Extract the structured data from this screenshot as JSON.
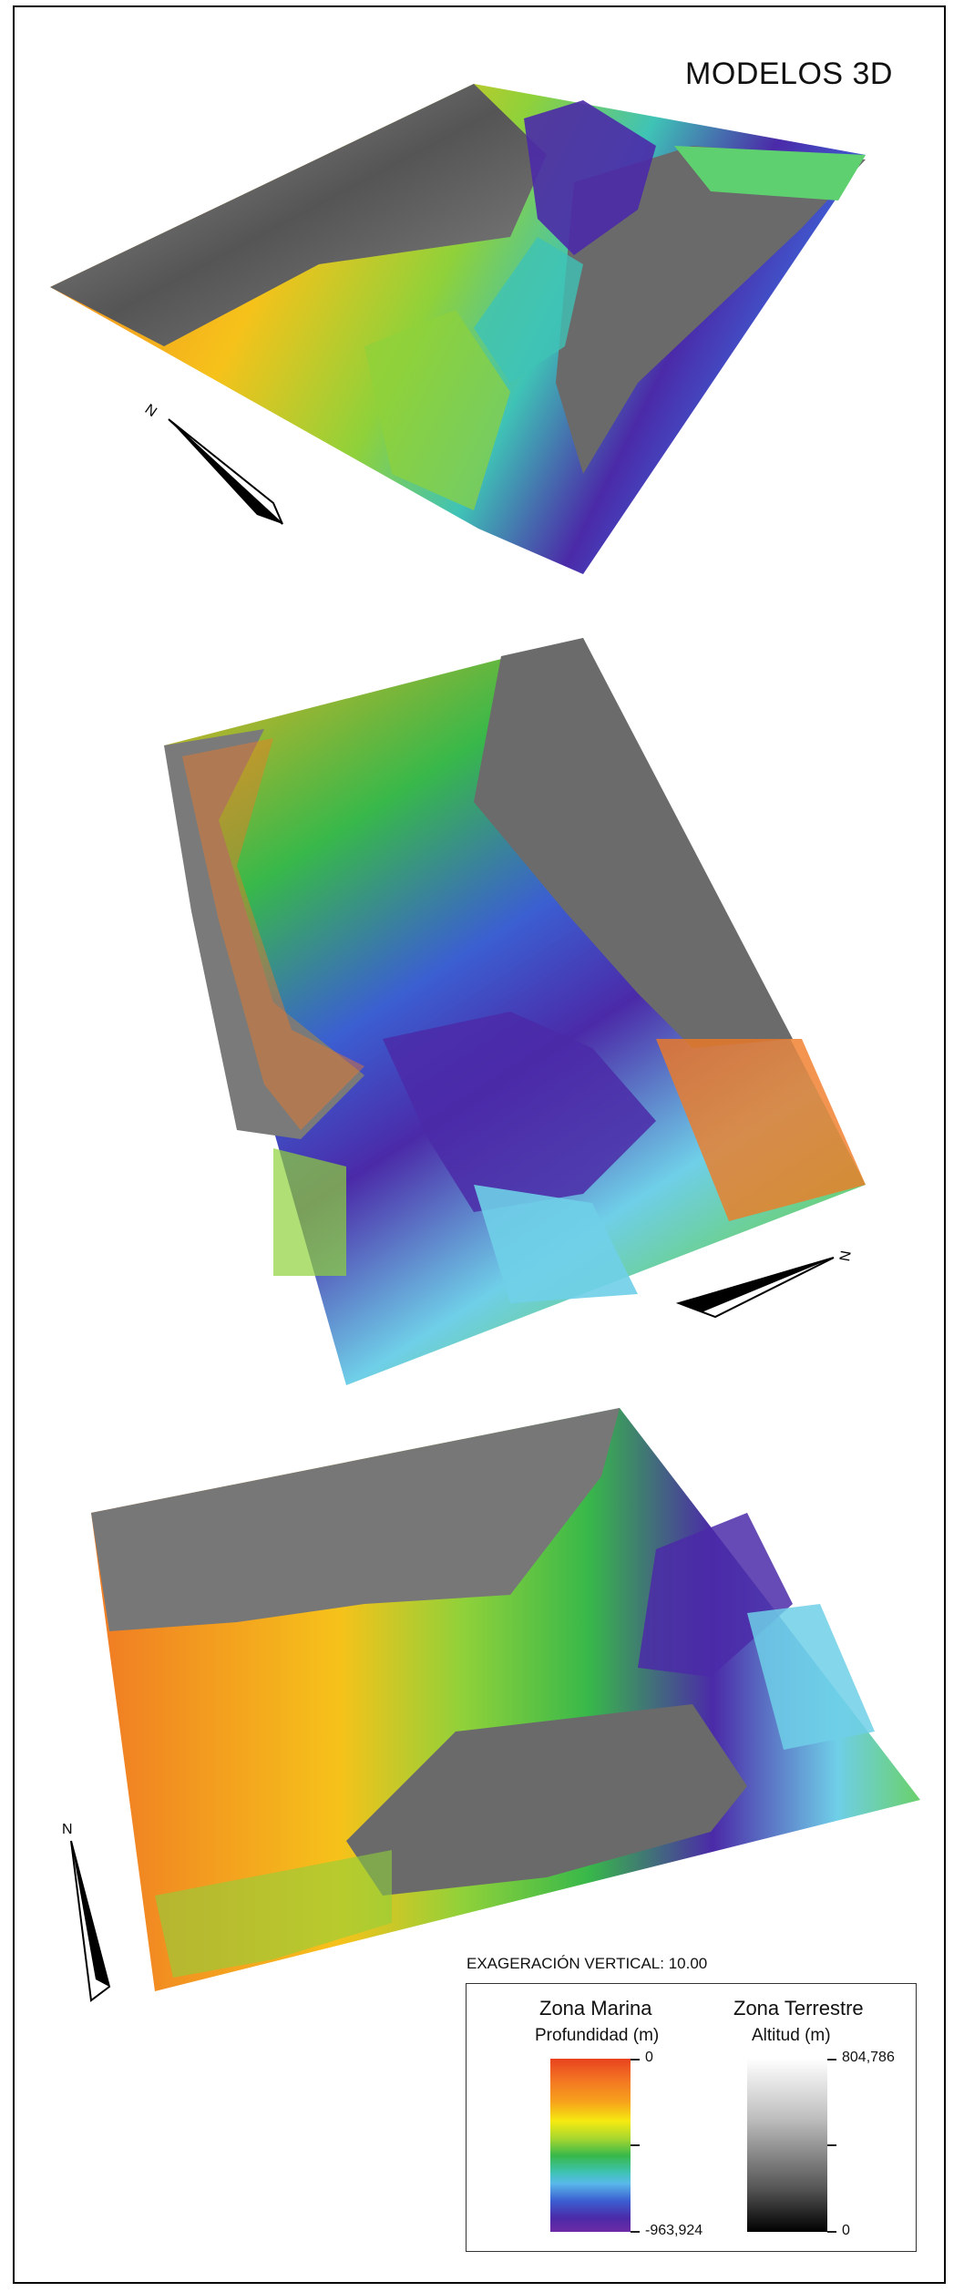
{
  "title": "MODELOS 3D",
  "vertical_exaggeration": "EXAGERACIÓN VERTICAL: 10.00",
  "north_label": "N",
  "legend": {
    "marine": {
      "title": "Zona Marina",
      "subtitle": "Profundidad (m)",
      "max": "0",
      "min": "-963,924"
    },
    "land": {
      "title": "Zona Terrestre",
      "subtitle": "Altitud (m)",
      "max": "804,786",
      "min": "0"
    }
  },
  "colors": {
    "depth_shallow": "#e8421e",
    "depth_mid": "#38b84a",
    "depth_deep": "#4b2aa8",
    "land_high": "#ffffff",
    "land_low": "#000000"
  }
}
